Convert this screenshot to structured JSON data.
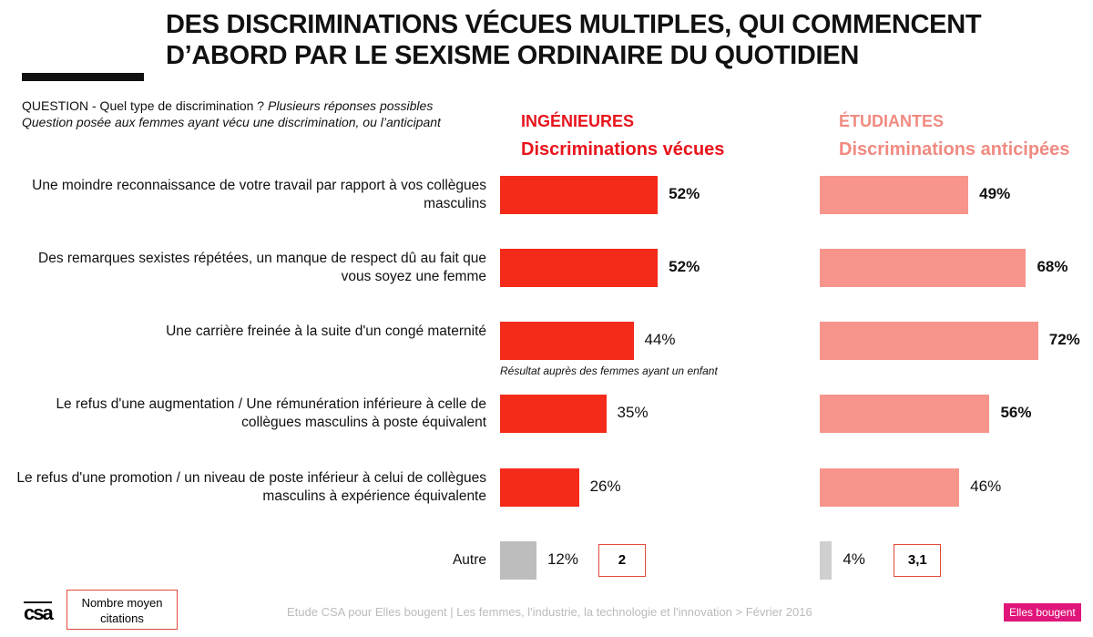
{
  "title_line1": "DES DISCRIMINATIONS VÉCUES MULTIPLES, QUI COMMENCENT",
  "title_line2": "D’ABORD PAR LE SEXISME ORDINAIRE DU QUOTIDIEN",
  "question_prefix": "QUESTION - Quel type de discrimination ?",
  "question_italic": " Plusieurs réponses possibles",
  "question_line2": "Question posée aux femmes ayant vécu une discrimination, ou l’anticipant",
  "note": "Résultat auprès des femmes ayant un enfant",
  "legend": "Nombre moyen citations",
  "footer": "Etude CSA pour Elles bougent | Les femmes, l'industrie, la technologie et l'innovation > Février 2016",
  "logo_csa": "csa",
  "logo_eb": "Elles bougent",
  "chart_data": {
    "type": "bar",
    "orientation": "horizontal",
    "categories": [
      "Une moindre reconnaissance de votre travail par rapport à vos collègues masculins",
      "Des remarques sexistes répétées, un manque de respect dû au fait que vous soyez une femme",
      "Une carrière freinée à la suite d'un congé maternité",
      "Le refus d'une augmentation / Une rémunération inférieure à celle de collègues masculins à poste équivalent",
      "Le refus d'une promotion / un niveau de poste inférieur à celui de collègues masculins à expérience équivalente",
      "Autre"
    ],
    "series": [
      {
        "name": "INGÉNIEURES",
        "subtitle": "Discriminations vécues",
        "color": "#f42a1a",
        "other_color": "#bdbdbd",
        "values": [
          52,
          52,
          44,
          35,
          26,
          12
        ],
        "labels": [
          "52%",
          "52%",
          "44%",
          "35%",
          "26%",
          "12%"
        ],
        "bold": [
          true,
          true,
          false,
          false,
          false,
          false
        ],
        "mean_citations": "2"
      },
      {
        "name": "ÉTUDIANTES",
        "subtitle": "Discriminations anticipées",
        "color": "#f7958c",
        "other_color": "#cfcfcf",
        "values": [
          49,
          68,
          72,
          56,
          46,
          4
        ],
        "labels": [
          "49%",
          "68%",
          "72%",
          "56%",
          "46%",
          "4%"
        ],
        "bold": [
          true,
          true,
          true,
          true,
          false,
          false
        ],
        "mean_citations": "3,1"
      }
    ],
    "unit": "%"
  }
}
